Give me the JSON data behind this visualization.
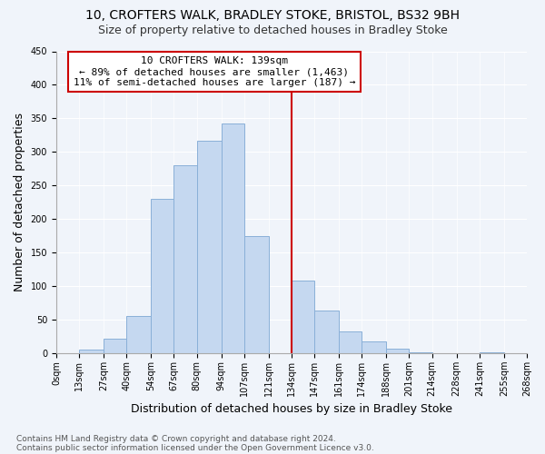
{
  "title1": "10, CROFTERS WALK, BRADLEY STOKE, BRISTOL, BS32 9BH",
  "title2": "Size of property relative to detached houses in Bradley Stoke",
  "xlabel": "Distribution of detached houses by size in Bradley Stoke",
  "ylabel": "Number of detached properties",
  "footnote1": "Contains HM Land Registry data © Crown copyright and database right 2024.",
  "footnote2": "Contains public sector information licensed under the Open Government Licence v3.0.",
  "annotation_line1": "10 CROFTERS WALK: 139sqm",
  "annotation_line2": "← 89% of detached houses are smaller (1,463)",
  "annotation_line3": "11% of semi-detached houses are larger (187) →",
  "property_sqm": 139,
  "bar_left_edges": [
    0,
    13,
    27,
    40,
    54,
    67,
    80,
    94,
    107,
    121,
    134,
    147,
    161,
    174,
    188,
    201,
    214,
    228,
    241,
    255
  ],
  "bar_heights": [
    0,
    6,
    22,
    55,
    230,
    280,
    317,
    343,
    175,
    0,
    108,
    63,
    33,
    18,
    7,
    2,
    0,
    0,
    2,
    0
  ],
  "bar_color": "#c5d8f0",
  "bar_edge_color": "#8ab0d8",
  "vline_x": 134,
  "vline_color": "#cc0000",
  "ylim": [
    0,
    450
  ],
  "yticks": [
    0,
    50,
    100,
    150,
    200,
    250,
    300,
    350,
    400,
    450
  ],
  "xtick_labels": [
    "0sqm",
    "13sqm",
    "27sqm",
    "40sqm",
    "54sqm",
    "67sqm",
    "80sqm",
    "94sqm",
    "107sqm",
    "121sqm",
    "134sqm",
    "147sqm",
    "161sqm",
    "174sqm",
    "188sqm",
    "201sqm",
    "214sqm",
    "228sqm",
    "241sqm",
    "255sqm",
    "268sqm"
  ],
  "bg_color": "#f0f4fa",
  "title_fontsize": 10,
  "subtitle_fontsize": 9,
  "axis_label_fontsize": 9,
  "tick_fontsize": 7,
  "annotation_fontsize": 8,
  "footnote_fontsize": 6.5
}
